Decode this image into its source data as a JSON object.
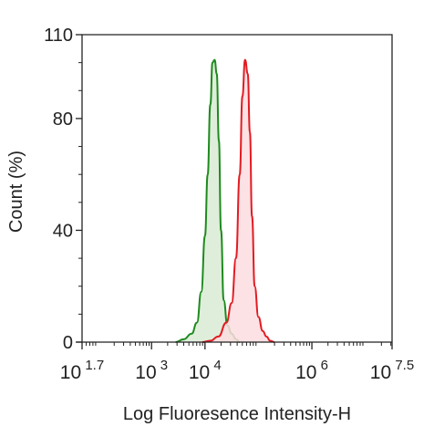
{
  "chart_data": {
    "type": "area",
    "xlabel": "Log Fluoresence Intensity-H",
    "ylabel": "Count  (%)",
    "x_scale": "log",
    "xlim_log10": [
      1.7,
      7.5
    ],
    "ylim": [
      0,
      110
    ],
    "y_ticks": [
      {
        "value": 0,
        "label": "0"
      },
      {
        "value": 40,
        "label": "40"
      },
      {
        "value": 80,
        "label": "80"
      },
      {
        "value": 110,
        "label": "110"
      }
    ],
    "x_ticks": [
      {
        "log10": 1.7,
        "base": "10",
        "exp": "1.7"
      },
      {
        "log10": 3,
        "base": "10",
        "exp": "3"
      },
      {
        "log10": 4,
        "base": "10",
        "exp": "4"
      },
      {
        "log10": 6,
        "base": "10",
        "exp": "6"
      },
      {
        "log10": 7.5,
        "base": "10",
        "exp": "7.5"
      }
    ],
    "series": [
      {
        "color": "#1e8a1e",
        "fill": "#d9ebd5",
        "log10_x": [
          3.45,
          3.6,
          3.75,
          3.85,
          3.93,
          4.0,
          4.05,
          4.1,
          4.14,
          4.18,
          4.22,
          4.26,
          4.3,
          4.35,
          4.42,
          4.5,
          4.58,
          4.65
        ],
        "y": [
          0,
          1,
          3,
          7,
          18,
          38,
          60,
          85,
          100,
          101,
          96,
          72,
          40,
          15,
          6,
          3,
          1,
          0
        ]
      },
      {
        "color": "#e21b22",
        "fill": "#fbdde0",
        "log10_x": [
          3.95,
          4.1,
          4.25,
          4.4,
          4.5,
          4.58,
          4.65,
          4.7,
          4.75,
          4.8,
          4.84,
          4.88,
          4.93,
          5.0,
          5.08,
          5.15,
          5.22,
          5.3
        ],
        "y": [
          0,
          0.5,
          2,
          7,
          14,
          30,
          60,
          88,
          101,
          96,
          75,
          45,
          20,
          9,
          4,
          2,
          0.5,
          0
        ]
      }
    ]
  }
}
